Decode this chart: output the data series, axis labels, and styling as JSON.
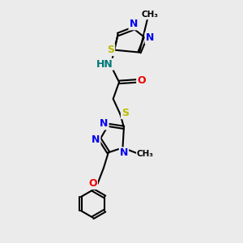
{
  "background_color": "#ebebeb",
  "bond_color": "#000000",
  "atom_colors": {
    "N": "#0000ee",
    "S": "#bbbb00",
    "O": "#ee0000",
    "H": "#007777",
    "C": "#000000"
  },
  "figsize": [
    3.0,
    3.0
  ],
  "dpi": 100,
  "xlim": [
    0,
    10
  ],
  "ylim": [
    0,
    10
  ]
}
